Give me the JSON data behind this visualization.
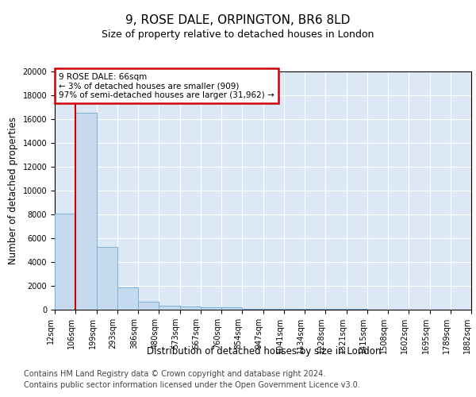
{
  "title": "9, ROSE DALE, ORPINGTON, BR6 8LD",
  "subtitle": "Size of property relative to detached houses in London",
  "xlabel": "Distribution of detached houses by size in London",
  "ylabel": "Number of detached properties",
  "bar_values": [
    8100,
    16500,
    5300,
    1850,
    650,
    350,
    250,
    200,
    200,
    100,
    80,
    60,
    50,
    40,
    35,
    30,
    25,
    20,
    18,
    15
  ],
  "bar_labels": [
    "12sqm",
    "106sqm",
    "199sqm",
    "293sqm",
    "386sqm",
    "480sqm",
    "573sqm",
    "667sqm",
    "760sqm",
    "854sqm",
    "947sqm",
    "1041sqm",
    "1134sqm",
    "1228sqm",
    "1321sqm",
    "1415sqm",
    "1508sqm",
    "1602sqm",
    "1695sqm",
    "1789sqm",
    "1882sqm"
  ],
  "bar_color": "#c5daee",
  "bar_edge_color": "#7ab0d8",
  "marker_color": "#cc0000",
  "annotation_text": "9 ROSE DALE: 66sqm\n← 3% of detached houses are smaller (909)\n97% of semi-detached houses are larger (31,962) →",
  "annotation_box_facecolor": "#ffffff",
  "annotation_box_edgecolor": "#cc0000",
  "ylim": [
    0,
    20000
  ],
  "yticks": [
    0,
    2000,
    4000,
    6000,
    8000,
    10000,
    12000,
    14000,
    16000,
    18000,
    20000
  ],
  "plot_bg_color": "#dce8f5",
  "footer_line1": "Contains HM Land Registry data © Crown copyright and database right 2024.",
  "footer_line2": "Contains public sector information licensed under the Open Government Licence v3.0.",
  "title_fontsize": 11,
  "subtitle_fontsize": 9,
  "axis_label_fontsize": 8.5,
  "tick_fontsize": 7,
  "footer_fontsize": 7,
  "annotation_fontsize": 7.5,
  "red_line_x": 1
}
